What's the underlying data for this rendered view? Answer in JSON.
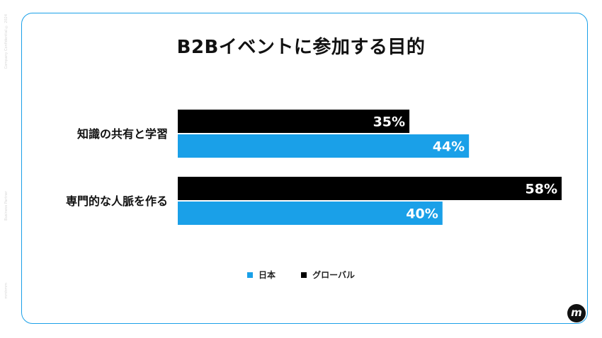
{
  "title": "B2Bイベントに参加する目的",
  "side_texts": [
    "Company Confidential  © 2024",
    "Business Partner",
    "mmhmm"
  ],
  "colors": {
    "japan": "#1aa0e8",
    "global": "#000000",
    "frame": "#1aa0e8"
  },
  "logo": "m",
  "chart_data": {
    "type": "bar",
    "orientation": "horizontal",
    "categories": [
      "知識の共有と学習",
      "専門的な人脈を作る"
    ],
    "series": [
      {
        "name": "グローバル",
        "values": [
          35,
          58
        ],
        "labels": [
          "35%",
          "58%"
        ]
      },
      {
        "name": "日本",
        "values": [
          44,
          40
        ],
        "labels": [
          "44%",
          "40%"
        ]
      }
    ],
    "xlim": [
      0,
      60
    ],
    "unit": "%",
    "legend": {
      "position": "bottom",
      "entries": [
        "日本",
        "グローバル"
      ]
    }
  }
}
